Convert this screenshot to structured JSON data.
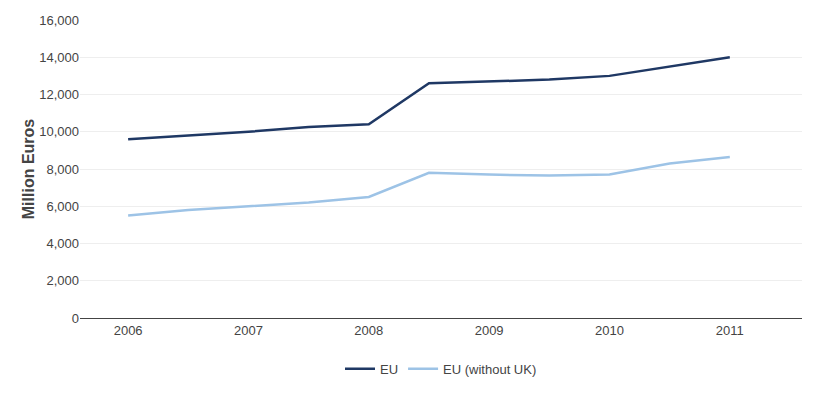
{
  "chart_data": {
    "type": "line",
    "ylabel": "Million Euros",
    "x": [
      2006,
      2006.5,
      2007,
      2007.5,
      2008,
      2008.5,
      2009,
      2009.5,
      2010,
      2010.5,
      2011
    ],
    "series": [
      {
        "name": "EU",
        "color": "#1F3864",
        "values": [
          9600,
          9800,
          10000,
          10250,
          10400,
          12600,
          12700,
          12800,
          13000,
          13500,
          14000
        ]
      },
      {
        "name": "EU (without UK)",
        "color": "#9DC3E6",
        "values": [
          5500,
          5800,
          6000,
          6200,
          6500,
          7800,
          7700,
          7650,
          7700,
          8300,
          8650
        ]
      }
    ],
    "xlim": [
      2005.6,
      2011.6
    ],
    "xticks": [
      2006,
      2007,
      2008,
      2009,
      2010,
      2011
    ],
    "ylim": [
      0,
      16000
    ],
    "yticks": [
      0,
      {
        "value": 2000,
        "label": "2,000"
      },
      {
        "value": 4000,
        "label": "4,000"
      },
      {
        "value": 6000,
        "label": "6,000"
      },
      {
        "value": 8000,
        "label": "8,000"
      },
      {
        "value": 10000,
        "label": "10,000"
      },
      {
        "value": 12000,
        "label": "12,000"
      },
      {
        "value": 14000,
        "label": "14,000"
      },
      {
        "value": 16000,
        "label": "16,000"
      }
    ],
    "grid": true,
    "legend": "bottom"
  }
}
